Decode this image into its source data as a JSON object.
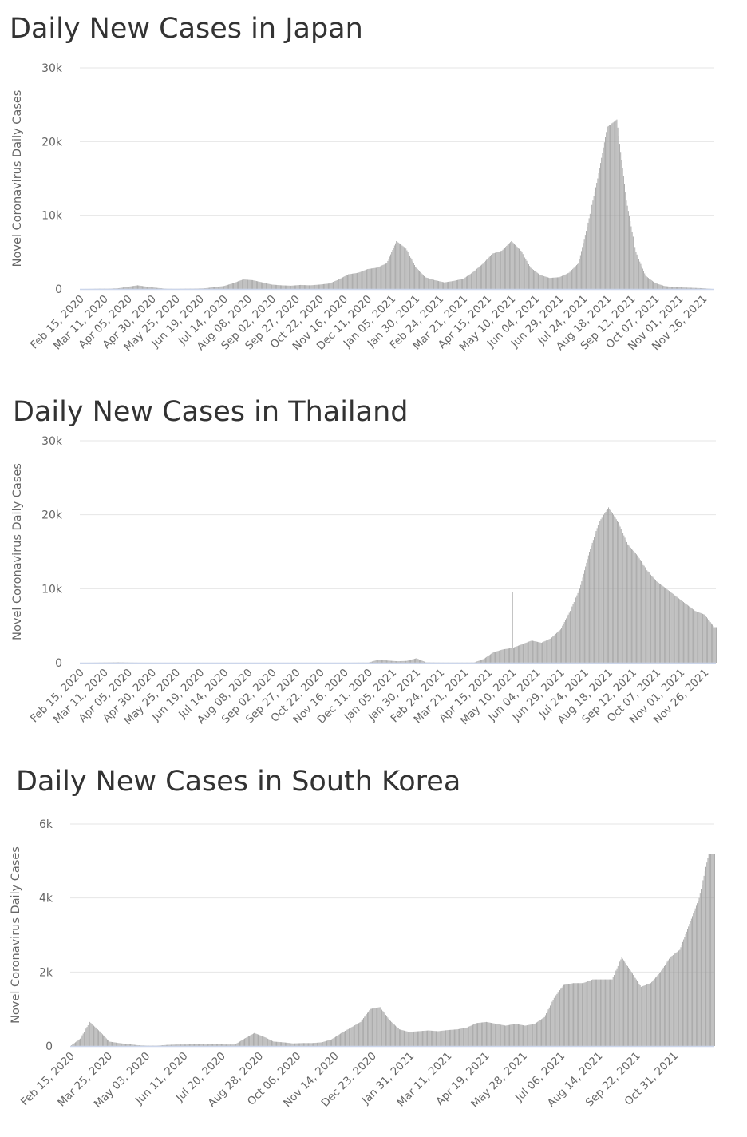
{
  "chart_data": [
    {
      "type": "bar",
      "title": "Daily New Cases in Japan",
      "ylabel": "Novel Coronavirus Daily Cases",
      "xlabel": "",
      "x_start": "Feb 15, 2020",
      "x_step_days": 10,
      "ylim": [
        0,
        30000
      ],
      "yticks": [
        0,
        10000,
        20000,
        30000
      ],
      "ytick_labels": [
        "0",
        "10k",
        "20k",
        "30k"
      ],
      "xtick_step_days": 25,
      "xtick_labels": [
        "Feb 15, 2020",
        "Mar 11, 2020",
        "Apr 05, 2020",
        "Apr 30, 2020",
        "May 25, 2020",
        "Jun 19, 2020",
        "Jul 14, 2020",
        "Aug 08, 2020",
        "Sep 02, 2020",
        "Sep 27, 2020",
        "Oct 22, 2020",
        "Nov 16, 2020",
        "Dec 11, 2020",
        "Jan 05, 2021",
        "Jan 30, 2021",
        "Feb 24, 2021",
        "Mar 21, 2021",
        "Apr 15, 2021",
        "May 10, 2021",
        "Jun 04, 2021",
        "Jun 29, 2021",
        "Jul 24, 2021",
        "Aug 18, 2021",
        "Sep 12, 2021",
        "Oct 07, 2021",
        "Nov 01, 2021",
        "Nov 26, 2021"
      ],
      "grid": true,
      "values": [
        0,
        10,
        40,
        40,
        100,
        300,
        500,
        300,
        150,
        30,
        20,
        40,
        50,
        90,
        250,
        400,
        800,
        1300,
        1200,
        900,
        600,
        500,
        450,
        550,
        500,
        600,
        750,
        1300,
        2000,
        2200,
        2700,
        2900,
        3500,
        6500,
        5500,
        3000,
        1600,
        1200,
        900,
        1100,
        1400,
        2300,
        3400,
        4800,
        5200,
        6500,
        5200,
        2900,
        1900,
        1500,
        1600,
        2200,
        3500,
        9000,
        15000,
        22000,
        23000,
        12000,
        5000,
        1800,
        800,
        400,
        250,
        200,
        150,
        100,
        0
      ]
    },
    {
      "type": "bar",
      "title": "Daily New Cases in Thailand",
      "ylabel": "Novel Coronavirus Daily Cases",
      "xlabel": "",
      "x_start": "Feb 15, 2020",
      "x_step_days": 10,
      "ylim": [
        0,
        30000
      ],
      "yticks": [
        0,
        10000,
        20000,
        30000
      ],
      "ytick_labels": [
        "0",
        "10k",
        "20k",
        "30k"
      ],
      "xtick_step_days": 25,
      "xtick_labels": [
        "Feb 15, 2020",
        "Mar 11, 2020",
        "Apr 05, 2020",
        "Apr 30, 2020",
        "May 25, 2020",
        "Jun 19, 2020",
        "Jul 14, 2020",
        "Aug 08, 2020",
        "Sep 02, 2020",
        "Sep 27, 2020",
        "Oct 22, 2020",
        "Nov 16, 2020",
        "Dec 11, 2020",
        "Jan 05, 2021",
        "Jan 30, 2021",
        "Feb 24, 2021",
        "Mar 21, 2021",
        "Apr 15, 2021",
        "May 10, 2021",
        "Jun 04, 2021",
        "Jun 29, 2021",
        "Jul 24, 2021",
        "Aug 18, 2021",
        "Sep 12, 2021",
        "Oct 07, 2021",
        "Nov 01, 2021",
        "Nov 26, 2021"
      ],
      "grid": true,
      "values": [
        0,
        5,
        20,
        40,
        60,
        30,
        10,
        5,
        5,
        5,
        5,
        5,
        5,
        5,
        5,
        5,
        5,
        5,
        5,
        5,
        5,
        5,
        5,
        5,
        5,
        5,
        5,
        5,
        10,
        20,
        20,
        400,
        300,
        200,
        250,
        600,
        50,
        30,
        20,
        20,
        20,
        30,
        500,
        1400,
        1800,
        2000,
        2500,
        3000,
        2700,
        3300,
        4500,
        7000,
        10000,
        15000,
        19000,
        21000,
        19000,
        16000,
        14500,
        12500,
        11000,
        10000,
        9000,
        8000,
        7000,
        6500,
        4800
      ],
      "spikes": [
        {
          "day": 450,
          "value": 9600
        }
      ]
    },
    {
      "type": "bar",
      "title": "Daily New Cases in South Korea",
      "ylabel": "Novel Coronavirus Daily Cases",
      "xlabel": "",
      "x_start": "Feb 15, 2020",
      "x_step_days": 10,
      "ylim": [
        0,
        6000
      ],
      "yticks": [
        0,
        2000,
        4000,
        6000
      ],
      "ytick_labels": [
        "0",
        "2k",
        "4k",
        "6k"
      ],
      "xtick_step_days": 39,
      "xtick_labels": [
        "Feb 15, 2020",
        "Mar 25, 2020",
        "May 03, 2020",
        "Jun 11, 2020",
        "Jul 20, 2020",
        "Aug 28, 2020",
        "Oct 06, 2020",
        "Nov 14, 2020",
        "Dec 23, 2020",
        "Jan 31, 2021",
        "Mar 11, 2021",
        "Apr 19, 2021",
        "May 28, 2021",
        "Jul 06, 2021",
        "Aug 14, 2021",
        "Sep 22, 2021",
        "Oct 31, 2021"
      ],
      "grid": true,
      "values": [
        0,
        200,
        650,
        400,
        120,
        80,
        50,
        20,
        10,
        10,
        30,
        40,
        40,
        50,
        40,
        50,
        40,
        40,
        200,
        350,
        250,
        120,
        100,
        70,
        80,
        80,
        100,
        180,
        350,
        500,
        650,
        1000,
        1050,
        700,
        450,
        380,
        400,
        420,
        400,
        430,
        450,
        500,
        620,
        650,
        600,
        550,
        600,
        550,
        600,
        780,
        1300,
        1650,
        1700,
        1700,
        1800,
        1800,
        1800,
        2400,
        2000,
        1600,
        1700,
        2000,
        2400,
        2600,
        3300,
        4000,
        5200
      ]
    }
  ]
}
